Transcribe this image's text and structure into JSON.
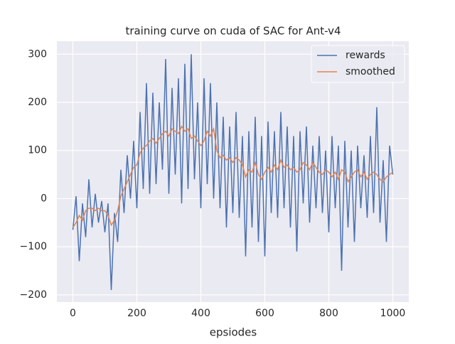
{
  "chart_data": {
    "type": "line",
    "title": "training curve on cuda of SAC for Ant-v4",
    "x_label": "epsiodes",
    "x": [
      0,
      10,
      20,
      30,
      40,
      50,
      60,
      70,
      80,
      90,
      100,
      110,
      120,
      130,
      140,
      150,
      160,
      170,
      180,
      190,
      200,
      210,
      220,
      230,
      240,
      250,
      260,
      270,
      280,
      290,
      300,
      310,
      320,
      330,
      340,
      350,
      360,
      370,
      380,
      390,
      400,
      410,
      420,
      430,
      440,
      450,
      460,
      470,
      480,
      490,
      500,
      510,
      520,
      530,
      540,
      550,
      560,
      570,
      580,
      590,
      600,
      610,
      620,
      630,
      640,
      650,
      660,
      670,
      680,
      690,
      700,
      710,
      720,
      730,
      740,
      750,
      760,
      770,
      780,
      790,
      800,
      810,
      820,
      830,
      840,
      850,
      860,
      870,
      880,
      890,
      900,
      910,
      920,
      930,
      940,
      950,
      960,
      970,
      980,
      990,
      1000
    ],
    "series": [
      {
        "name": "rewards",
        "color": "#4c72b0",
        "values": [
          -65,
          5,
          -130,
          -10,
          -80,
          40,
          -60,
          10,
          -50,
          -5,
          -70,
          -10,
          -190,
          -30,
          -90,
          60,
          -30,
          90,
          0,
          120,
          -20,
          180,
          20,
          240,
          10,
          220,
          30,
          200,
          60,
          290,
          10,
          230,
          50,
          250,
          -10,
          280,
          20,
          300,
          40,
          200,
          -20,
          250,
          30,
          240,
          0,
          200,
          -20,
          170,
          -60,
          150,
          -30,
          180,
          -40,
          130,
          -120,
          140,
          -60,
          170,
          -90,
          130,
          -120,
          160,
          -30,
          140,
          -40,
          180,
          -20,
          150,
          -60,
          130,
          -110,
          140,
          -10,
          150,
          -50,
          110,
          -20,
          130,
          -30,
          100,
          -70,
          130,
          -20,
          110,
          -150,
          120,
          -60,
          100,
          -90,
          110,
          -20,
          90,
          -40,
          130,
          -30,
          190,
          -50,
          80,
          -90,
          110,
          50
        ]
      },
      {
        "name": "smoothed",
        "color": "#dd8452",
        "values": [
          -60,
          -50,
          -35,
          -45,
          -25,
          -20,
          -20,
          -25,
          -20,
          -25,
          -25,
          -35,
          -55,
          -45,
          -25,
          5,
          20,
          35,
          50,
          65,
          70,
          95,
          105,
          110,
          120,
          125,
          115,
          125,
          135,
          140,
          130,
          145,
          140,
          135,
          150,
          140,
          145,
          125,
          130,
          120,
          110,
          120,
          140,
          130,
          145,
          100,
          85,
          90,
          80,
          85,
          75,
          85,
          80,
          70,
          45,
          60,
          55,
          75,
          50,
          40,
          55,
          65,
          55,
          70,
          60,
          80,
          65,
          70,
          60,
          65,
          55,
          60,
          75,
          70,
          60,
          75,
          65,
          55,
          50,
          60,
          55,
          45,
          55,
          40,
          60,
          55,
          35,
          45,
          55,
          60,
          45,
          55,
          40,
          50,
          55,
          50,
          40,
          35,
          45,
          50,
          55
        ]
      }
    ],
    "xlim": [
      -50,
      1050
    ],
    "xticks": [
      0,
      200,
      400,
      600,
      800,
      1000
    ],
    "ylim": [
      -215,
      327
    ],
    "yticks": [
      {
        "value": -200,
        "label": "−200"
      },
      {
        "value": -100,
        "label": "−100"
      },
      0,
      100,
      200,
      300
    ],
    "grid": true,
    "legend": "upper right"
  }
}
